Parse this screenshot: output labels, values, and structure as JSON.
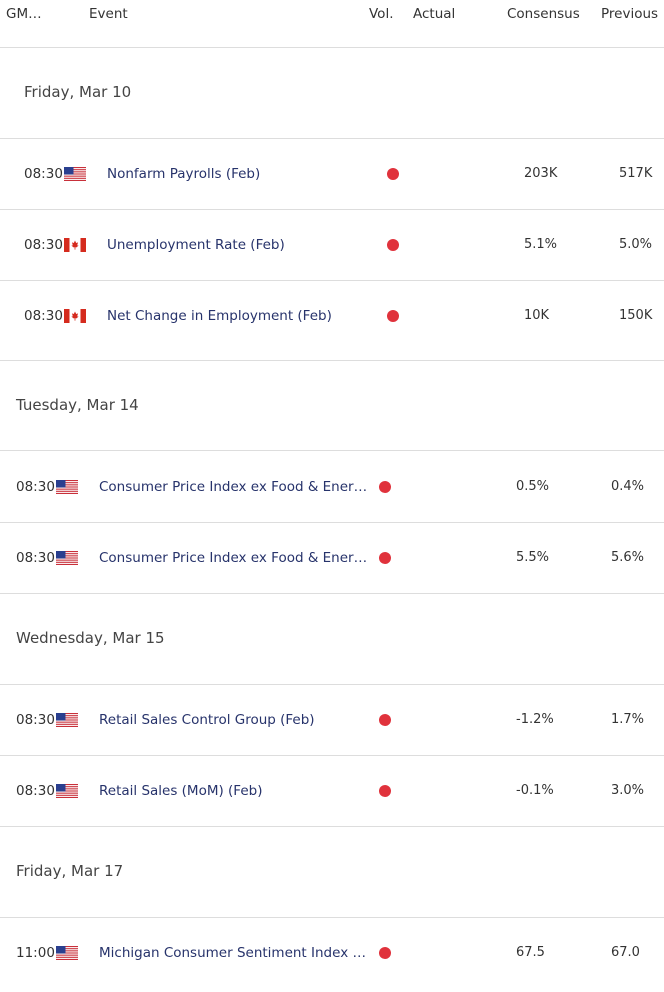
{
  "header": {
    "columns": [
      "GM…",
      "Event",
      "Vol.",
      "Actual",
      "Consensus",
      "Previous"
    ]
  },
  "groups": [
    {
      "date": "Friday, Mar 10",
      "events": [
        {
          "time": "08:30",
          "event": "Nonfarm Payrolls (Feb)",
          "consensus": "203K",
          "previous": "517K"
        },
        {
          "time": "08:30",
          "event": "Unemployment Rate (Feb)",
          "consensus": "5.1%",
          "previous": "5.0%"
        },
        {
          "time": "08:30",
          "event": "Net Change in Employment (Feb)",
          "consensus": "10K",
          "previous": "150K"
        }
      ]
    },
    {
      "date": "Tuesday, Mar 14",
      "events": [
        {
          "time": "08:30",
          "event": "Consumer Price Index ex Food & Ener…",
          "consensus": "0.5%",
          "previous": "0.4%"
        },
        {
          "time": "08:30",
          "event": "Consumer Price Index ex Food & Ener…",
          "consensus": "5.5%",
          "previous": "5.6%"
        }
      ]
    },
    {
      "date": "Wednesday, Mar 15",
      "events": [
        {
          "time": "08:30",
          "event": "Retail Sales Control Group (Feb)",
          "consensus": "-1.2%",
          "previous": "1.7%"
        },
        {
          "time": "08:30",
          "event": "Retail Sales (MoM) (Feb)",
          "consensus": "-0.1%",
          "previous": "3.0%"
        }
      ]
    },
    {
      "date": "Friday, Mar 17",
      "events": [
        {
          "time": "11:00",
          "event": "Michigan Consumer Sentiment Index …",
          "consensus": "67.5",
          "previous": "67.0"
        }
      ]
    }
  ]
}
